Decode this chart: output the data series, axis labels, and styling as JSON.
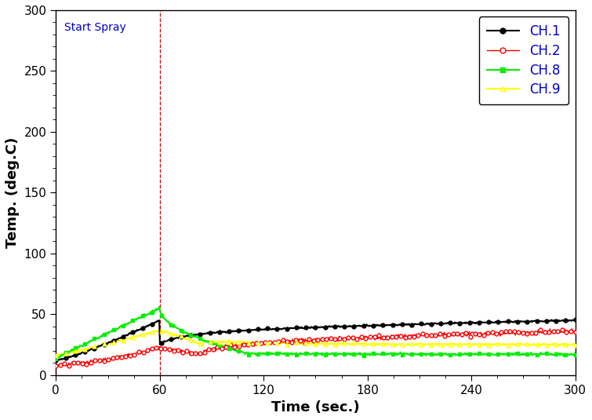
{
  "title": "",
  "xlabel": "Time (sec.)",
  "ylabel": "Temp. (deg.C)",
  "xlim": [
    0,
    300
  ],
  "ylim": [
    0,
    300
  ],
  "xticks": [
    0,
    60,
    120,
    180,
    240,
    300
  ],
  "yticks": [
    0,
    50,
    100,
    150,
    200,
    250,
    300
  ],
  "spray_line_x": 60,
  "spray_label": "Start Spray",
  "spray_label_color": "#0000cc",
  "spray_line_color": "#cc0000",
  "channels": [
    "CH.1",
    "CH.2",
    "CH.8",
    "CH.9"
  ],
  "line_colors": [
    "#000000",
    "#ff0000",
    "#00ee00",
    "#ffff00"
  ],
  "legend_line_colors": [
    "#000000",
    "#ff0000",
    "#00ee00",
    "#ffff00"
  ],
  "background_color": "#ffffff",
  "legend_text_color": "#0000cc",
  "axis_label_color": "#000000",
  "tick_label_color": "#000000",
  "figsize": [
    7.55,
    5.35
  ],
  "dpi": 100
}
